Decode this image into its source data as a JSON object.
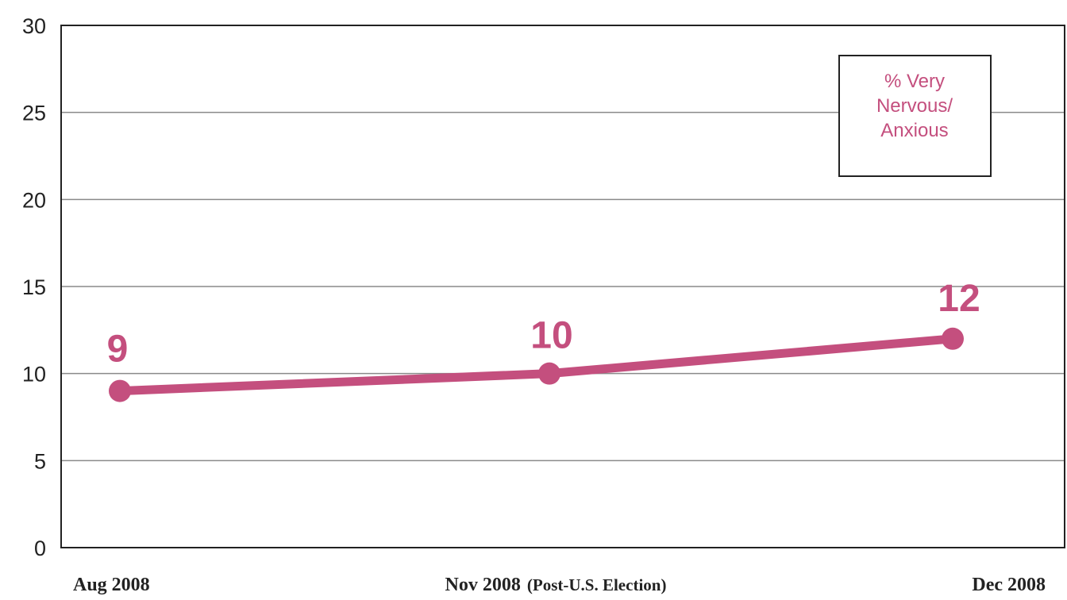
{
  "chart_data": {
    "type": "line",
    "categories": [
      "Aug 2008",
      "Nov 2008 (Post-U.S. Election)",
      "Dec 2008"
    ],
    "x_tick_labels": [
      {
        "main": "Aug 2008",
        "note": ""
      },
      {
        "main": "Nov 2008",
        "note": "(Post-U.S. Election)"
      },
      {
        "main": "Dec 2008",
        "note": ""
      }
    ],
    "series": [
      {
        "name": "% Very Nervous/ Anxious",
        "values": [
          9,
          10,
          12
        ],
        "color": "#c44f7e"
      }
    ],
    "data_labels": [
      "9",
      "10",
      "12"
    ],
    "legend_lines": [
      "% Very",
      "Nervous/",
      "Anxious"
    ],
    "legend_position": "top-right",
    "title": "",
    "xlabel": "",
    "ylabel": "",
    "ylim": [
      0,
      30
    ],
    "yticks": [
      0,
      5,
      10,
      15,
      20,
      25,
      30
    ],
    "grid": true
  }
}
